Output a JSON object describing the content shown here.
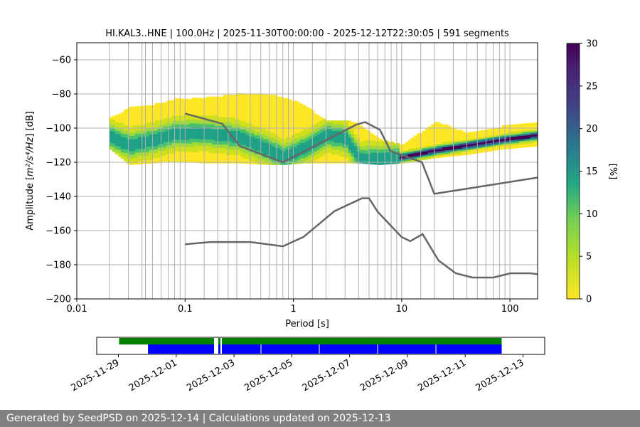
{
  "chart_data": {
    "type": "heatmap",
    "title": "HI.KAL3..HNE | 100.0Hz | 2025-11-30T00:00:00 - 2025-12-12T22:30:05 | 591 segments",
    "xlabel": "Period [s]",
    "ylabel_prefix": "Amplitude [",
    "ylabel_units": "m²/s⁴/Hz",
    "ylabel_suffix": "] [dB]",
    "xscale": "log",
    "xlim": [
      0.01,
      180
    ],
    "ylim": [
      -200,
      -50
    ],
    "x_ticks": [
      0.01,
      0.1,
      1,
      10,
      100
    ],
    "x_tick_labels": [
      "0.01",
      "0.1",
      "1",
      "10",
      "100"
    ],
    "y_ticks": [
      -200,
      -180,
      -160,
      -140,
      -120,
      -100,
      -80,
      -60
    ],
    "y_tick_labels": [
      "−200",
      "−180",
      "−160",
      "−140",
      "−120",
      "−100",
      "−80",
      "−60"
    ],
    "grid": "vertical lines at periods",
    "colorbar": {
      "label": "[%]",
      "range": [
        0,
        30
      ],
      "ticks": [
        0,
        5,
        10,
        15,
        20,
        25,
        30
      ],
      "colormap": "viridis_r"
    },
    "ppsd_bands": [
      {
        "period": 0.02,
        "upper": -94,
        "lower": -112,
        "mode": -105
      },
      {
        "period": 0.03,
        "upper": -88,
        "lower": -121,
        "mode": -110
      },
      {
        "period": 0.05,
        "upper": -86,
        "lower": -120,
        "mode": -107
      },
      {
        "period": 0.08,
        "upper": -83,
        "lower": -119,
        "mode": -103
      },
      {
        "period": 0.15,
        "upper": -82,
        "lower": -120,
        "mode": -103
      },
      {
        "period": 0.3,
        "upper": -80,
        "lower": -120,
        "mode": -105
      },
      {
        "period": 0.6,
        "upper": -80,
        "lower": -121,
        "mode": -113
      },
      {
        "period": 0.8,
        "upper": -82,
        "lower": -121,
        "mode": -117
      },
      {
        "period": 1.2,
        "upper": -86,
        "lower": -120,
        "mode": -112
      },
      {
        "period": 2,
        "upper": -96,
        "lower": -120,
        "mode": -104
      },
      {
        "period": 3,
        "upper": -95,
        "lower": -120,
        "mode": -106
      },
      {
        "period": 4,
        "upper": -98,
        "lower": -120,
        "mode": -118
      },
      {
        "period": 6,
        "upper": -106,
        "lower": -121,
        "mode": -118
      },
      {
        "period": 10,
        "upper": -110,
        "lower": -120,
        "mode": -117
      },
      {
        "period": 20,
        "upper": -96,
        "lower": -117,
        "mode": -113
      },
      {
        "period": 40,
        "upper": -103,
        "lower": -115,
        "mode": -110
      },
      {
        "period": 80,
        "upper": -99,
        "lower": -112,
        "mode": -107
      },
      {
        "period": 180,
        "upper": -96,
        "lower": -110,
        "mode": -104
      }
    ],
    "nhnm": {
      "x": [
        0.1,
        0.22,
        0.32,
        0.8,
        3.8,
        4.6,
        6.3,
        7.9,
        15.4,
        20,
        354.8
      ],
      "y": [
        -91.5,
        -97.4,
        -110.5,
        -120,
        -98,
        -96.5,
        -101,
        -113.5,
        -120,
        -138.5,
        -126
      ]
    },
    "nlnm": {
      "x": [
        0.1,
        0.17,
        0.4,
        0.8,
        1.24,
        2.4,
        4.3,
        5.0,
        6.0,
        10.0,
        12.0,
        15.6,
        21.9,
        31.6,
        45.0,
        70.0,
        101.0,
        154.0,
        180.0
      ],
      "y": [
        -168,
        -166.7,
        -166.7,
        -169.2,
        -163.7,
        -148.6,
        -141.1,
        -141.1,
        -149.0,
        -163.8,
        -166.2,
        -162.1,
        -177.5,
        -185.0,
        -187.5,
        -187.5,
        -185.0,
        -185.0,
        -185.5
      ]
    },
    "vertical_gridlines": [
      0.02,
      0.03,
      0.04,
      0.043,
      0.05,
      0.06,
      0.07,
      0.08,
      0.09,
      0.1,
      0.15,
      0.2,
      0.25,
      0.3,
      0.4,
      0.5,
      0.6,
      0.7,
      0.8,
      0.9,
      1.0,
      1.5,
      2,
      3,
      4,
      5,
      6,
      7,
      8,
      9,
      10,
      15,
      20,
      30,
      40,
      50,
      60,
      70,
      80,
      90,
      100
    ]
  },
  "timeline": {
    "tick_labels": [
      "2025-11-29",
      "2025-12-01",
      "2025-12-03",
      "2025-12-05",
      "2025-12-07",
      "2025-12-09",
      "2025-12-11",
      "2025-12-13"
    ],
    "data_available": {
      "start": "2025-11-29",
      "end": "2025-12-13"
    },
    "ppsd_used": {
      "start": "2025-11-30",
      "end": "2025-12-13"
    },
    "colors": {
      "available": "#008000",
      "used": "#0000ff"
    }
  },
  "footer": {
    "text": "Generated by SeedPSD on 2025-12-14 | Calculations updated on 2025-12-13"
  },
  "colors": {
    "reference_curves": "#666666",
    "grid": "#b0b0b0",
    "footer_bg": "#808080"
  }
}
